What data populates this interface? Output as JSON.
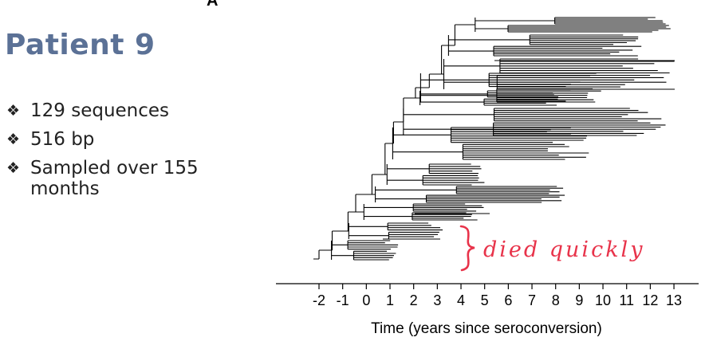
{
  "slide": {
    "panel_letter": "A",
    "title": "Patient 9",
    "bullets": [
      {
        "icon": "diamond-bullet-icon",
        "text": "129 sequences"
      },
      {
        "icon": "diamond-bullet-icon",
        "text": "516 bp"
      },
      {
        "icon": "diamond-bullet-icon",
        "text": "Sampled over 155 months"
      }
    ],
    "title_color": "#5b7196"
  },
  "chart_data": {
    "type": "phylogenetic-tree",
    "xlabel": "Time (years since seroconversion)",
    "x_ticks": [
      -2,
      -1,
      0,
      1,
      2,
      3,
      4,
      5,
      6,
      7,
      8,
      9,
      10,
      11,
      12,
      13
    ],
    "xlim": [
      -2,
      13
    ],
    "tips": 129,
    "annotation": {
      "text": "died quickly",
      "style": "handwritten",
      "color": "#e8334a"
    }
  }
}
